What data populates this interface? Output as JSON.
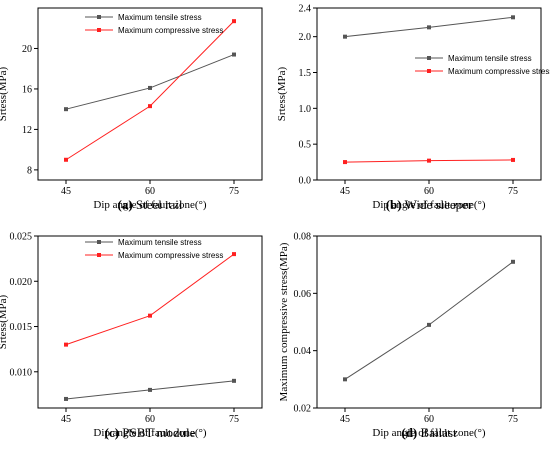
{
  "colors": {
    "tensile": "#555555",
    "compressive": "#ff2020",
    "axis": "#000000"
  },
  "chart_data": [
    {
      "type": "line",
      "caption_letter": "(a)",
      "caption_text": "Steel rail",
      "xlabel": "Dip angle of fault zone(°)",
      "ylabel": "Srtess(MPa)",
      "x": [
        45,
        60,
        75
      ],
      "xticks": [
        45,
        60,
        75
      ],
      "xtick_labels": [
        "45",
        "60",
        "75"
      ],
      "xlim": [
        40,
        80
      ],
      "ylim": [
        7,
        24
      ],
      "yticks": [
        8,
        12,
        16,
        20
      ],
      "ytick_labels": [
        "8",
        "12",
        "16",
        "20"
      ],
      "legend_placement": "top-left",
      "series": [
        {
          "name": "Maximum tensile stress",
          "color": "#555555",
          "values": [
            14.0,
            16.1,
            19.4
          ]
        },
        {
          "name": "Maximum compressive stress",
          "color": "#ff2020",
          "values": [
            9.0,
            14.3,
            22.7
          ]
        }
      ]
    },
    {
      "type": "line",
      "caption_letter": "(b)",
      "caption_text": "Wide sleeper",
      "xlabel": "Dip angle of fault zone(°)",
      "ylabel": "Srtess(MPa)",
      "x": [
        45,
        60,
        75
      ],
      "xticks": [
        45,
        60,
        75
      ],
      "xtick_labels": [
        "45",
        "60",
        "75"
      ],
      "xlim": [
        40,
        80
      ],
      "ylim": [
        0.0,
        2.4
      ],
      "yticks": [
        0.0,
        0.5,
        1.0,
        1.5,
        2.0,
        2.4
      ],
      "ytick_labels": [
        "0.0",
        "0.5",
        "1.0",
        "1.5",
        "2.0",
        "2.4"
      ],
      "legend_placement": "center-right",
      "series": [
        {
          "name": "Maximum tensile stress",
          "color": "#555555",
          "values": [
            2.0,
            2.13,
            2.27
          ]
        },
        {
          "name": "Maximum compressive stress",
          "color": "#ff2020",
          "values": [
            0.25,
            0.27,
            0.28
          ]
        }
      ]
    },
    {
      "type": "line",
      "caption_letter": "(c)",
      "caption_text": "PSBT module",
      "xlabel": "Dip angle of fault zone(°)",
      "ylabel": "Srtess(MPa)",
      "x": [
        45,
        60,
        75
      ],
      "xticks": [
        45,
        60,
        75
      ],
      "xtick_labels": [
        "45",
        "60",
        "75"
      ],
      "xlim": [
        40,
        80
      ],
      "ylim": [
        0.006,
        0.025
      ],
      "yticks": [
        0.01,
        0.015,
        0.02,
        0.025
      ],
      "ytick_labels": [
        "0.010",
        "0.015",
        "0.020",
        "0.025"
      ],
      "legend_placement": "top-left",
      "series": [
        {
          "name": "Maximum tensile stress",
          "color": "#555555",
          "values": [
            0.007,
            0.008,
            0.009
          ]
        },
        {
          "name": "Maximum compressive stress",
          "color": "#ff2020",
          "values": [
            0.013,
            0.0162,
            0.023
          ]
        }
      ]
    },
    {
      "type": "line",
      "caption_letter": "(d)",
      "caption_text": "Ballast",
      "xlabel": "Dip angle of fault zone(°)",
      "ylabel": "Maximum compressive stress(MPa)",
      "x": [
        45,
        60,
        75
      ],
      "xticks": [
        45,
        60,
        75
      ],
      "xtick_labels": [
        "45",
        "60",
        "75"
      ],
      "xlim": [
        40,
        80
      ],
      "ylim": [
        0.02,
        0.08
      ],
      "yticks": [
        0.02,
        0.04,
        0.06,
        0.08
      ],
      "ytick_labels": [
        "0.02",
        "0.04",
        "0.06",
        "0.08"
      ],
      "legend_placement": "none",
      "series": [
        {
          "name": "",
          "color": "#555555",
          "values": [
            0.03,
            0.049,
            0.071
          ]
        }
      ]
    }
  ]
}
